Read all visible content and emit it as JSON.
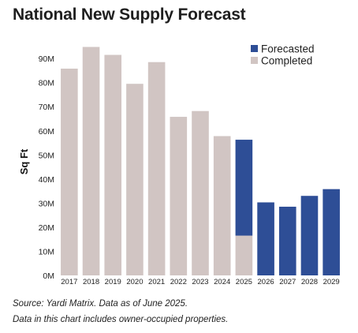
{
  "chart_data": {
    "type": "bar",
    "stacked": true,
    "title": "National New Supply Forecast",
    "ylabel": "Sq Ft",
    "xlabel": "",
    "ylim": [
      0,
      100
    ],
    "yticks": [
      0,
      10,
      20,
      30,
      40,
      50,
      60,
      70,
      80,
      90
    ],
    "ytick_labels": [
      "0M",
      "10M",
      "20M",
      "30M",
      "40M",
      "50M",
      "60M",
      "70M",
      "80M",
      "90M"
    ],
    "categories": [
      "2017",
      "2018",
      "2019",
      "2020",
      "2021",
      "2022",
      "2023",
      "2024",
      "2025",
      "2026",
      "2027",
      "2028",
      "2029"
    ],
    "series": [
      {
        "name": "Completed",
        "color": "#d1c5c3",
        "values": [
          85.8,
          94.8,
          91.5,
          79.5,
          88.5,
          65.8,
          68.2,
          57.8,
          16.5,
          0,
          0,
          0,
          0
        ]
      },
      {
        "name": "Forecasted",
        "color": "#2e4e96",
        "values": [
          0,
          0,
          0,
          0,
          0,
          0,
          0,
          0,
          39.8,
          30.3,
          28.5,
          33.0,
          35.8
        ]
      }
    ],
    "legend": {
      "position": "top-right",
      "entries": [
        "Forecasted",
        "Completed"
      ]
    },
    "grid": false
  },
  "footnotes": {
    "source": "Source: Yardi Matrix. Data as of June 2025.",
    "note": "Data in this chart includes owner-occupied properties."
  }
}
